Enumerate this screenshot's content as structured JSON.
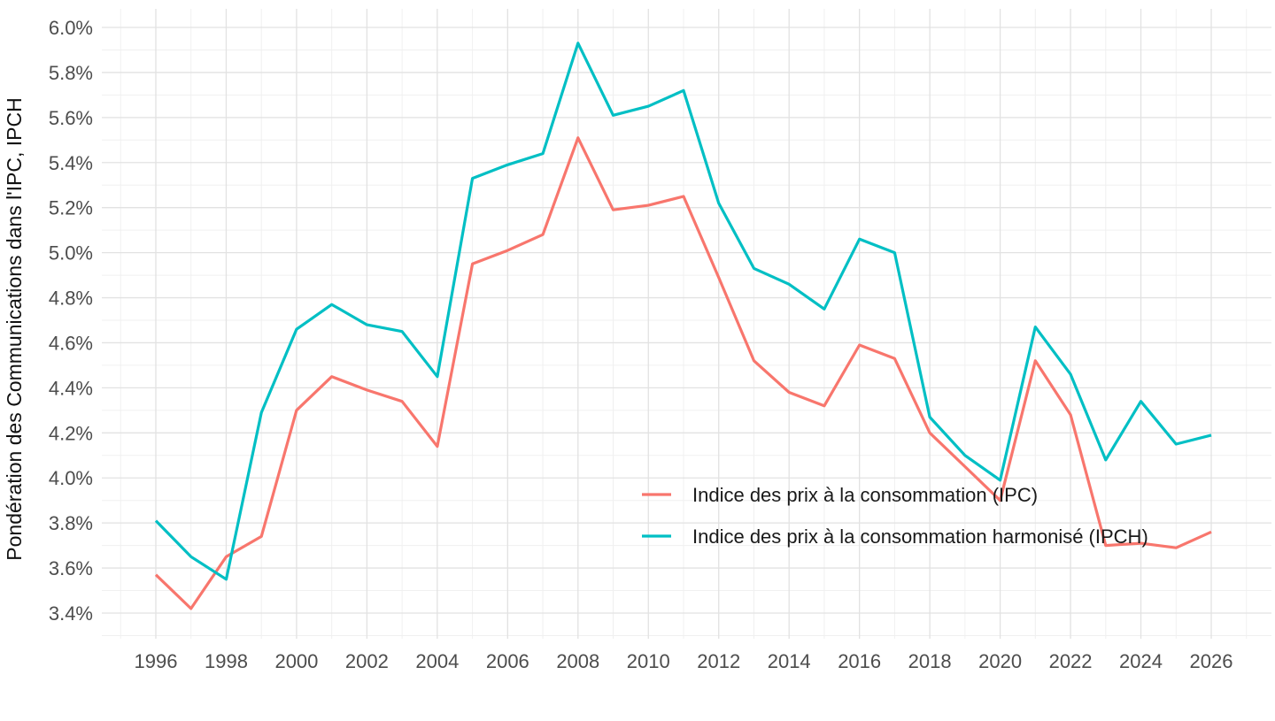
{
  "chart_data": {
    "type": "line",
    "title": "",
    "xlabel": "",
    "ylabel": "Pondération des Communications dans l'IPC, IPCH",
    "x": [
      1996,
      1997,
      1998,
      1999,
      2000,
      2001,
      2002,
      2003,
      2004,
      2005,
      2006,
      2007,
      2008,
      2009,
      2010,
      2011,
      2012,
      2013,
      2014,
      2015,
      2016,
      2017,
      2018,
      2019,
      2020,
      2021,
      2022,
      2023,
      2024,
      2025,
      2026
    ],
    "series": [
      {
        "name": "Indice des prix à la consommation (IPC)",
        "color": "#F8766D",
        "values": [
          3.57,
          3.42,
          3.65,
          3.74,
          4.3,
          4.45,
          4.39,
          4.34,
          4.14,
          4.95,
          5.01,
          5.08,
          5.51,
          5.19,
          5.21,
          5.25,
          4.89,
          4.52,
          4.38,
          4.32,
          4.59,
          4.53,
          4.2,
          4.05,
          3.9,
          4.52,
          4.28,
          3.7,
          3.71,
          3.69,
          3.76
        ]
      },
      {
        "name": "Indice des prix à la consommation harmonisé (IPCH)",
        "color": "#00BFC4",
        "values": [
          3.81,
          3.65,
          3.55,
          4.29,
          4.66,
          4.77,
          4.68,
          4.65,
          4.45,
          5.33,
          5.39,
          5.44,
          5.93,
          5.61,
          5.65,
          5.72,
          5.22,
          4.93,
          4.86,
          4.75,
          5.06,
          5.0,
          4.27,
          4.1,
          3.99,
          4.67,
          4.46,
          4.08,
          4.34,
          4.15,
          4.19
        ]
      }
    ],
    "y_axis": {
      "min": 3.4,
      "max": 6.0,
      "major_step": 0.2,
      "minor_step": 0.1,
      "tick_labels": [
        "3.4%",
        "3.6%",
        "3.8%",
        "4.0%",
        "4.2%",
        "4.4%",
        "4.6%",
        "4.8%",
        "5.0%",
        "5.2%",
        "5.4%",
        "5.6%",
        "5.8%",
        "6.0%"
      ]
    },
    "x_axis": {
      "min": 1996,
      "max": 2026,
      "label_step": 2,
      "minor_step": 1,
      "tick_labels": [
        "1996",
        "1998",
        "2000",
        "2002",
        "2004",
        "2006",
        "2008",
        "2010",
        "2012",
        "2014",
        "2016",
        "2018",
        "2020",
        "2022",
        "2024",
        "2026"
      ]
    },
    "legend": {
      "position": "inside-middle-right",
      "entries": [
        {
          "label": "Indice des prix à la consommation (IPC)",
          "color": "#F8766D"
        },
        {
          "label": "Indice des prix à la consommation harmonisé (IPCH)",
          "color": "#00BFC4"
        }
      ]
    },
    "style": {
      "background": "#FFFFFF",
      "gridline_major_color": "#E2E2E2",
      "gridline_minor_color": "#F0F0F0",
      "tick_label_color": "#4D4D4D",
      "axis_title_color": "#111111",
      "line_width": 3.2
    },
    "grid": true
  }
}
